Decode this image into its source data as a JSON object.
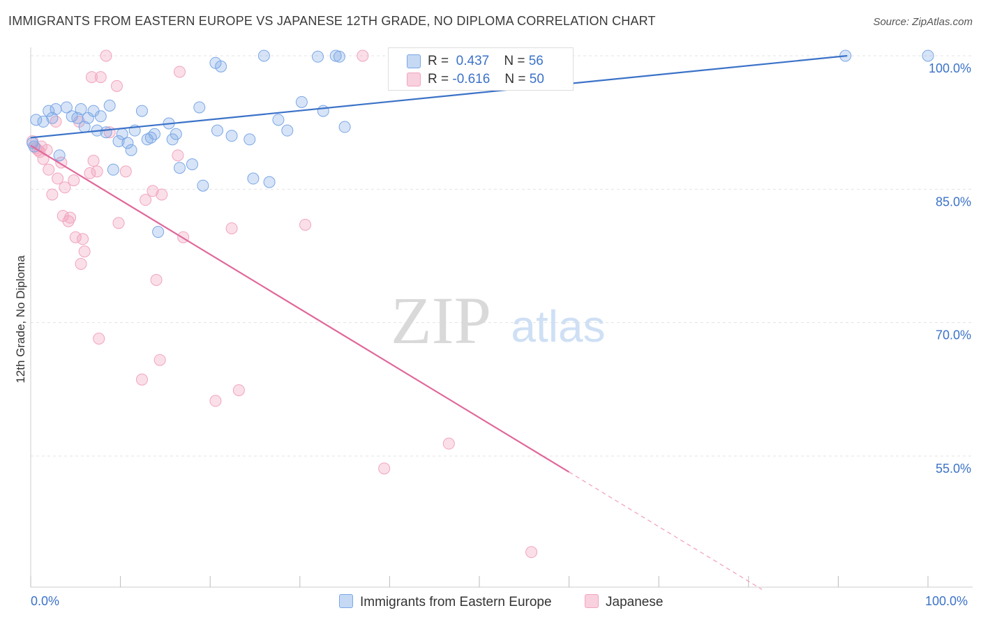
{
  "title": "IMMIGRANTS FROM EASTERN EUROPE VS JAPANESE 12TH GRADE, NO DIPLOMA CORRELATION CHART",
  "source": "Source: ZipAtlas.com",
  "watermark": {
    "zip": "ZIP",
    "atlas": "atlas"
  },
  "legend": {
    "blue": {
      "r_label": "R =",
      "r_value": "0.437",
      "n_label": "N =",
      "n_value": "56"
    },
    "pink": {
      "r_label": "R =",
      "r_value": "-0.616",
      "n_label": "N =",
      "n_value": "50"
    }
  },
  "colors": {
    "blue": "#7aa7e6",
    "blue_line": "#3b72c8",
    "pink": "#f2a4be",
    "pink_line": "#e0689a",
    "tick_text": "#3b72c8"
  },
  "chart_data": {
    "type": "scatter",
    "xlabel": "",
    "ylabel": "12th Grade, No Diploma",
    "x_ticks": [
      "0.0%",
      "100.0%"
    ],
    "y_ticks": [
      "100.0%",
      "85.0%",
      "70.0%",
      "55.0%"
    ],
    "xlim": [
      0,
      100
    ],
    "ylim": [
      43,
      101.5
    ],
    "grid": true,
    "legend_position": "top-center",
    "series": [
      {
        "name": "Immigrants from Eastern Europe",
        "color": "#7aa7e6",
        "trend": {
          "x": [
            0,
            91
          ],
          "y": [
            90.8,
            100.0
          ]
        },
        "points": [
          [
            0.6,
            92.8
          ],
          [
            1.4,
            92.6
          ],
          [
            2,
            93.8
          ],
          [
            2.4,
            93
          ],
          [
            2.8,
            94
          ],
          [
            3.2,
            88.8
          ],
          [
            4,
            94.2
          ],
          [
            4.6,
            93.2
          ],
          [
            5.2,
            93
          ],
          [
            5.6,
            94
          ],
          [
            6,
            92
          ],
          [
            6.4,
            93
          ],
          [
            7,
            93.8
          ],
          [
            7.4,
            91.6
          ],
          [
            7.8,
            93.2
          ],
          [
            8.4,
            91.4
          ],
          [
            8.8,
            94.4
          ],
          [
            9.2,
            87.2
          ],
          [
            9.8,
            90.4
          ],
          [
            10.2,
            91.2
          ],
          [
            10.8,
            90.2
          ],
          [
            11.2,
            89.4
          ],
          [
            11.6,
            91.6
          ],
          [
            12.4,
            93.8
          ],
          [
            13,
            90.6
          ],
          [
            13.4,
            90.8
          ],
          [
            13.8,
            91.2
          ],
          [
            14.2,
            80.2
          ],
          [
            15.4,
            92.4
          ],
          [
            15.8,
            90.6
          ],
          [
            16.2,
            91.2
          ],
          [
            16.6,
            87.4
          ],
          [
            18,
            87.8
          ],
          [
            18.8,
            94.2
          ],
          [
            19.2,
            85.4
          ],
          [
            20.6,
            99.2
          ],
          [
            21.2,
            98.8
          ],
          [
            20.8,
            91.6
          ],
          [
            22.4,
            91
          ],
          [
            24.4,
            90.6
          ],
          [
            24.8,
            86.2
          ],
          [
            26,
            100
          ],
          [
            26.6,
            85.8
          ],
          [
            27.6,
            92.8
          ],
          [
            28.6,
            91.6
          ],
          [
            30.2,
            94.8
          ],
          [
            32,
            99.9
          ],
          [
            32.6,
            93.8
          ],
          [
            34,
            100
          ],
          [
            34.4,
            99.9
          ],
          [
            35,
            92
          ],
          [
            51,
            100
          ],
          [
            90.8,
            100
          ],
          [
            100,
            100
          ],
          [
            0.2,
            90.2
          ],
          [
            0.4,
            89.8
          ]
        ]
      },
      {
        "name": "Japanese",
        "color": "#f2a4be",
        "trend": {
          "x": [
            0,
            60
          ],
          "y": [
            89.9,
            53.2
          ]
        },
        "trend_dashed": {
          "x": [
            60,
            81.5
          ],
          "y": [
            53.2,
            40.0
          ]
        },
        "points": [
          [
            0.2,
            90.4
          ],
          [
            0.6,
            89.6
          ],
          [
            1,
            89.2
          ],
          [
            1.4,
            88.4
          ],
          [
            1.8,
            89.4
          ],
          [
            2,
            87.2
          ],
          [
            2.4,
            84.4
          ],
          [
            2.8,
            92.6
          ],
          [
            3,
            86.2
          ],
          [
            3.4,
            88
          ],
          [
            3.6,
            82
          ],
          [
            3.8,
            85.2
          ],
          [
            4.2,
            81.4
          ],
          [
            4.4,
            81.8
          ],
          [
            4.8,
            86
          ],
          [
            5,
            79.6
          ],
          [
            5.4,
            92.6
          ],
          [
            5.6,
            76.6
          ],
          [
            5.8,
            79.4
          ],
          [
            6,
            78
          ],
          [
            6.6,
            86.8
          ],
          [
            6.8,
            97.6
          ],
          [
            7,
            88.2
          ],
          [
            7.4,
            87
          ],
          [
            7.6,
            68.2
          ],
          [
            7.8,
            97.6
          ],
          [
            8.4,
            100
          ],
          [
            8.8,
            91.4
          ],
          [
            9.6,
            96.6
          ],
          [
            9.8,
            81.2
          ],
          [
            10.6,
            87
          ],
          [
            12.4,
            63.6
          ],
          [
            12.8,
            83.8
          ],
          [
            13.6,
            84.8
          ],
          [
            14,
            74.8
          ],
          [
            14.4,
            65.8
          ],
          [
            14.6,
            84.4
          ],
          [
            16.4,
            88.8
          ],
          [
            16.6,
            98.2
          ],
          [
            17,
            79.6
          ],
          [
            20.6,
            61.2
          ],
          [
            22.4,
            80.6
          ],
          [
            23.2,
            62.4
          ],
          [
            30.6,
            81
          ],
          [
            37,
            100
          ],
          [
            39.4,
            53.6
          ],
          [
            46.6,
            56.4
          ],
          [
            55.8,
            44.2
          ],
          [
            0.8,
            89.4
          ],
          [
            1.2,
            89.8
          ]
        ]
      }
    ]
  }
}
